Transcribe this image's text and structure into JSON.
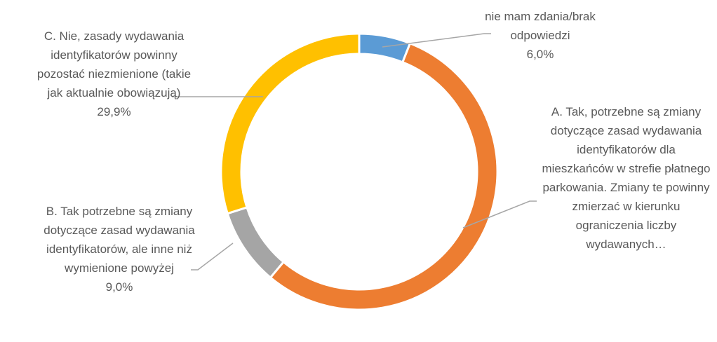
{
  "chart_data": {
    "type": "donut",
    "categories": [
      "nie mam zdania/brak odpowiedzi",
      "A. Tak, potrzebne są zmiany dotyczące zasad wydawania identyfikatorów dla mieszkańców w strefie płatnego parkowania. Zmiany te powinny zmierzać w kierunku ograniczenia liczby wydawanych…",
      "B. Tak potrzebne są zmiany dotyczące zasad wydawania identyfikatorów, ale inne niż wymienione powyżej",
      "C. Nie, zasady wydawania identyfikatorów powinny pozostać niezmienione (takie jak aktualnie obowiązują)"
    ],
    "values": [
      6.0,
      55.1,
      9.0,
      29.9
    ],
    "value_labels": [
      "6,0%",
      null,
      "9,0%",
      "29,9%"
    ],
    "colors": [
      "#5b9bd5",
      "#ed7d31",
      "#a5a5a5",
      "#ffc000"
    ]
  }
}
